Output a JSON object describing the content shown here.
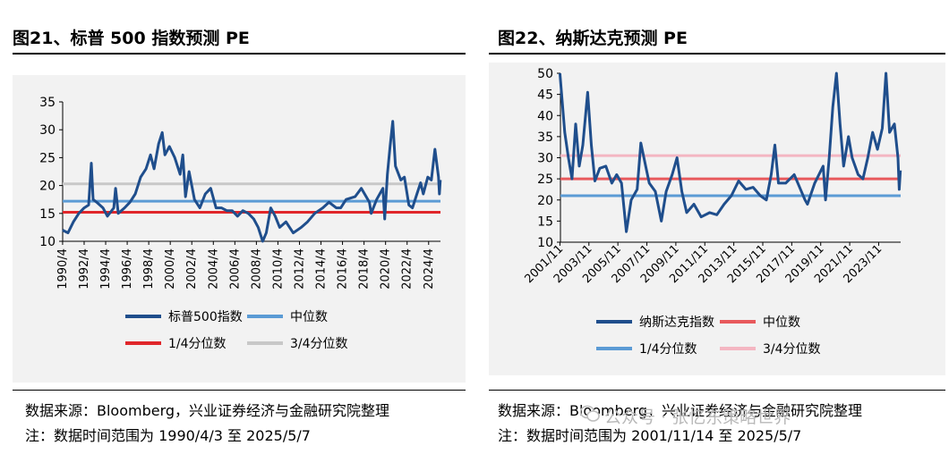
{
  "left": {
    "title": "图21、标普 500 指数预测 PE",
    "source": "数据来源：Bloomberg，兴业证券经济与金融研究院整理",
    "note": "注：数据时间范围为 1990/4/3 至 2025/5/7"
  },
  "right": {
    "title": "图22、纳斯达克预测 PE",
    "source": "数据来源：Bloomberg，兴业证券经济与金融研究院整理",
    "note": "注：数据时间范围为 2001/11/14 至 2025/5/7"
  },
  "watermark": "公众号 · 张忆东策略世界",
  "chart_data": [
    {
      "type": "line",
      "title": "图21、标普 500 指数预测 PE",
      "x_type": "date",
      "x_range": [
        "1990-04-03",
        "2025-05-07"
      ],
      "x_tick_labels": [
        "1990/4",
        "1992/4",
        "1994/4",
        "1996/4",
        "1998/4",
        "2000/4",
        "2002/4",
        "2004/4",
        "2006/4",
        "2008/4",
        "2010/4",
        "2012/4",
        "2014/4",
        "2016/4",
        "2018/4",
        "2020/4",
        "2022/4",
        "2024/4"
      ],
      "ylim": [
        10,
        35
      ],
      "y_ticks": [
        10,
        15,
        20,
        25,
        30,
        35
      ],
      "legend_position": "bottom",
      "grid": false,
      "series": [
        {
          "name": "标普500指数",
          "color": "#1f4e8c",
          "points": [
            [
              "1990-04",
              12.0
            ],
            [
              "1990-10",
              11.5
            ],
            [
              "1991-04",
              13.5
            ],
            [
              "1991-10",
              15.0
            ],
            [
              "1992-04",
              16.0
            ],
            [
              "1992-09",
              16.5
            ],
            [
              "1992-12",
              24.0
            ],
            [
              "1993-02",
              17.5
            ],
            [
              "1993-06",
              17.0
            ],
            [
              "1994-01",
              16.0
            ],
            [
              "1994-06",
              14.5
            ],
            [
              "1995-01",
              16.0
            ],
            [
              "1995-03",
              19.5
            ],
            [
              "1995-06",
              15.0
            ],
            [
              "1996-01",
              16.0
            ],
            [
              "1996-07",
              17.0
            ],
            [
              "1997-01",
              18.5
            ],
            [
              "1997-07",
              21.5
            ],
            [
              "1998-01",
              23.0
            ],
            [
              "1998-06",
              25.5
            ],
            [
              "1998-10",
              23.0
            ],
            [
              "1999-03",
              27.5
            ],
            [
              "1999-07",
              29.5
            ],
            [
              "1999-10",
              25.5
            ],
            [
              "2000-03",
              27.0
            ],
            [
              "2000-09",
              25.0
            ],
            [
              "2001-03",
              22.0
            ],
            [
              "2001-06",
              25.5
            ],
            [
              "2001-09",
              18.0
            ],
            [
              "2002-01",
              22.5
            ],
            [
              "2002-07",
              17.5
            ],
            [
              "2003-01",
              16.0
            ],
            [
              "2003-07",
              18.5
            ],
            [
              "2004-01",
              19.5
            ],
            [
              "2004-07",
              16.0
            ],
            [
              "2005-01",
              16.0
            ],
            [
              "2005-07",
              15.5
            ],
            [
              "2006-01",
              15.5
            ],
            [
              "2006-07",
              14.5
            ],
            [
              "2007-01",
              15.5
            ],
            [
              "2007-07",
              15.0
            ],
            [
              "2008-01",
              14.0
            ],
            [
              "2008-06",
              12.5
            ],
            [
              "2008-11",
              10.0
            ],
            [
              "2009-03",
              11.5
            ],
            [
              "2009-08",
              16.0
            ],
            [
              "2010-01",
              14.5
            ],
            [
              "2010-06",
              12.5
            ],
            [
              "2011-01",
              13.5
            ],
            [
              "2011-09",
              11.5
            ],
            [
              "2012-06",
              12.5
            ],
            [
              "2013-01",
              13.5
            ],
            [
              "2013-09",
              15.0
            ],
            [
              "2014-06",
              16.0
            ],
            [
              "2015-01",
              17.0
            ],
            [
              "2015-09",
              16.0
            ],
            [
              "2016-02",
              16.0
            ],
            [
              "2016-08",
              17.5
            ],
            [
              "2017-06",
              18.0
            ],
            [
              "2018-01",
              19.5
            ],
            [
              "2018-10",
              17.0
            ],
            [
              "2018-12",
              15.0
            ],
            [
              "2019-06",
              17.5
            ],
            [
              "2020-01",
              19.5
            ],
            [
              "2020-03",
              14.0
            ],
            [
              "2020-06",
              22.0
            ],
            [
              "2020-09",
              27.0
            ],
            [
              "2020-12",
              31.5
            ],
            [
              "2021-03",
              23.5
            ],
            [
              "2021-09",
              21.0
            ],
            [
              "2022-01",
              21.5
            ],
            [
              "2022-06",
              16.5
            ],
            [
              "2022-10",
              16.0
            ],
            [
              "2023-03",
              18.5
            ],
            [
              "2023-07",
              20.5
            ],
            [
              "2023-10",
              18.5
            ],
            [
              "2024-03",
              21.5
            ],
            [
              "2024-07",
              21.0
            ],
            [
              "2024-11",
              26.5
            ],
            [
              "2025-03",
              21.5
            ],
            [
              "2025-04",
              18.5
            ],
            [
              "2025-05",
              21.0
            ]
          ]
        },
        {
          "name": "中位数",
          "color": "#5b9bd5",
          "constant": 17.2
        },
        {
          "name": "1/4分位数",
          "color": "#e0262a",
          "constant": 15.2
        },
        {
          "name": "3/4分位数",
          "color": "#c8c8c8",
          "constant": 20.3
        }
      ]
    },
    {
      "type": "line",
      "title": "图22、纳斯达克预测 PE",
      "x_type": "date",
      "x_range": [
        "2001-11-14",
        "2025-05-07"
      ],
      "x_tick_labels": [
        "2001/11",
        "2003/11",
        "2005/11",
        "2007/11",
        "2009/11",
        "2011/11",
        "2013/11",
        "2015/11",
        "2017/11",
        "2019/11",
        "2021/11",
        "2023/11"
      ],
      "ylim": [
        10,
        50
      ],
      "y_ticks": [
        10,
        15,
        20,
        25,
        30,
        35,
        40,
        45,
        50
      ],
      "legend_position": "bottom",
      "grid": false,
      "series": [
        {
          "name": "纳斯达克指数",
          "color": "#1f4e8c",
          "points": [
            [
              "2001-11",
              50.0
            ],
            [
              "2002-03",
              36.0
            ],
            [
              "2002-06",
              30.0
            ],
            [
              "2002-09",
              25.0
            ],
            [
              "2002-12",
              38.0
            ],
            [
              "2003-03",
              28.0
            ],
            [
              "2003-06",
              33.0
            ],
            [
              "2003-10",
              45.5
            ],
            [
              "2004-01",
              33.0
            ],
            [
              "2004-04",
              24.5
            ],
            [
              "2004-08",
              27.5
            ],
            [
              "2005-01",
              28.0
            ],
            [
              "2005-06",
              24.0
            ],
            [
              "2005-10",
              26.0
            ],
            [
              "2006-02",
              24.0
            ],
            [
              "2006-06",
              12.5
            ],
            [
              "2006-10",
              20.0
            ],
            [
              "2007-03",
              22.5
            ],
            [
              "2007-06",
              33.5
            ],
            [
              "2007-10",
              28.0
            ],
            [
              "2008-01",
              24.0
            ],
            [
              "2008-06",
              22.0
            ],
            [
              "2008-11",
              15.0
            ],
            [
              "2009-03",
              22.0
            ],
            [
              "2009-08",
              26.0
            ],
            [
              "2009-12",
              30.0
            ],
            [
              "2010-04",
              22.0
            ],
            [
              "2010-08",
              17.0
            ],
            [
              "2011-02",
              19.0
            ],
            [
              "2011-08",
              16.0
            ],
            [
              "2012-03",
              17.0
            ],
            [
              "2012-09",
              16.5
            ],
            [
              "2013-03",
              19.0
            ],
            [
              "2013-09",
              21.0
            ],
            [
              "2014-03",
              24.5
            ],
            [
              "2014-09",
              22.5
            ],
            [
              "2015-03",
              23.0
            ],
            [
              "2015-09",
              21.0
            ],
            [
              "2016-02",
              20.0
            ],
            [
              "2016-06",
              26.0
            ],
            [
              "2016-09",
              33.0
            ],
            [
              "2016-12",
              24.0
            ],
            [
              "2017-06",
              24.0
            ],
            [
              "2018-01",
              26.0
            ],
            [
              "2018-10",
              20.0
            ],
            [
              "2018-12",
              19.0
            ],
            [
              "2019-06",
              24.0
            ],
            [
              "2020-01",
              28.0
            ],
            [
              "2020-03",
              20.0
            ],
            [
              "2020-06",
              30.0
            ],
            [
              "2020-09",
              42.0
            ],
            [
              "2020-12",
              50.0
            ],
            [
              "2021-03",
              38.0
            ],
            [
              "2021-06",
              28.0
            ],
            [
              "2021-10",
              35.0
            ],
            [
              "2022-01",
              30.0
            ],
            [
              "2022-06",
              26.0
            ],
            [
              "2022-10",
              25.0
            ],
            [
              "2023-02",
              30.0
            ],
            [
              "2023-06",
              36.0
            ],
            [
              "2023-10",
              32.0
            ],
            [
              "2024-02",
              37.0
            ],
            [
              "2024-05",
              50.0
            ],
            [
              "2024-08",
              36.0
            ],
            [
              "2024-12",
              38.0
            ],
            [
              "2025-03",
              30.0
            ],
            [
              "2025-04",
              22.5
            ],
            [
              "2025-05",
              27.0
            ]
          ]
        },
        {
          "name": "中位数",
          "color": "#e8595c",
          "constant": 25.0
        },
        {
          "name": "1/4分位数",
          "color": "#5b9bd5",
          "constant": 21.0
        },
        {
          "name": "3/4分位数",
          "color": "#f4b6c2",
          "constant": 30.5
        }
      ]
    }
  ]
}
